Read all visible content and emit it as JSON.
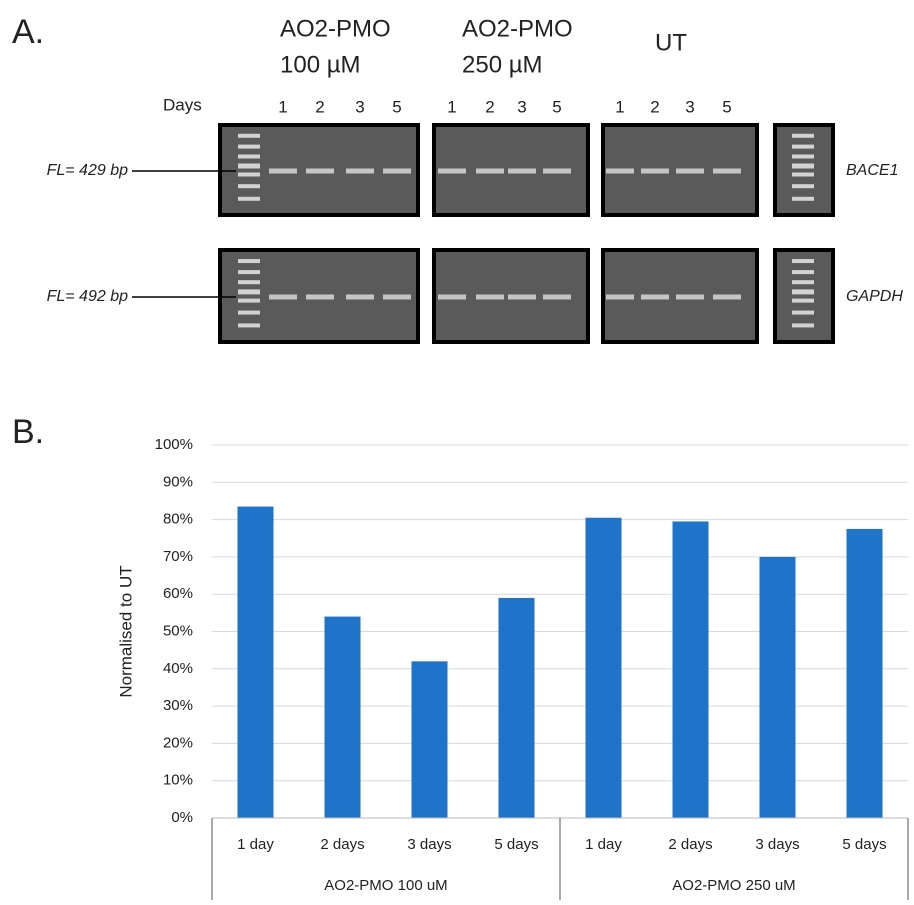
{
  "panel_a": {
    "label": "A.",
    "days_label": "Days",
    "groups": [
      {
        "name": "AO2-PMO",
        "dose": "100 µM",
        "lanes": [
          "1",
          "2",
          "3",
          "5"
        ]
      },
      {
        "name": "AO2-PMO",
        "dose": "250 µM",
        "lanes": [
          "1",
          "2",
          "3",
          "5"
        ]
      },
      {
        "name": "UT",
        "lanes": [
          "1",
          "2",
          "3",
          "5"
        ]
      }
    ],
    "rows": [
      {
        "size": "FL= 429 bp",
        "gene": "BACE1"
      },
      {
        "size": "FL= 492 bp",
        "gene": "GAPDH"
      }
    ]
  },
  "panel_b_label": "B.",
  "chart_data": {
    "type": "bar",
    "y_label": "Normalised to UT",
    "categories": [
      "1 day",
      "2 days",
      "3 days",
      "5 days",
      "1 day",
      "2 days",
      "3 days",
      "5 days"
    ],
    "group_labels": [
      "AO2-PMO 100 uM",
      "AO2-PMO 250 uM"
    ],
    "values": [
      83.5,
      54,
      42,
      59,
      80.5,
      79.5,
      70,
      77.5
    ],
    "color": "#1f73c8",
    "ylim": [
      0,
      100
    ],
    "yticks": [
      {
        "value": 0,
        "label": "0%"
      },
      {
        "value": 10,
        "label": "10%"
      },
      {
        "value": 20,
        "label": "20%"
      },
      {
        "value": 30,
        "label": "30%"
      },
      {
        "value": 40,
        "label": "40%"
      },
      {
        "value": 50,
        "label": "50%"
      },
      {
        "value": 60,
        "label": "60%"
      },
      {
        "value": 70,
        "label": "70%"
      },
      {
        "value": 80,
        "label": "80%"
      },
      {
        "value": 90,
        "label": "90%"
      },
      {
        "value": 100,
        "label": "100%"
      }
    ],
    "grid": true
  }
}
